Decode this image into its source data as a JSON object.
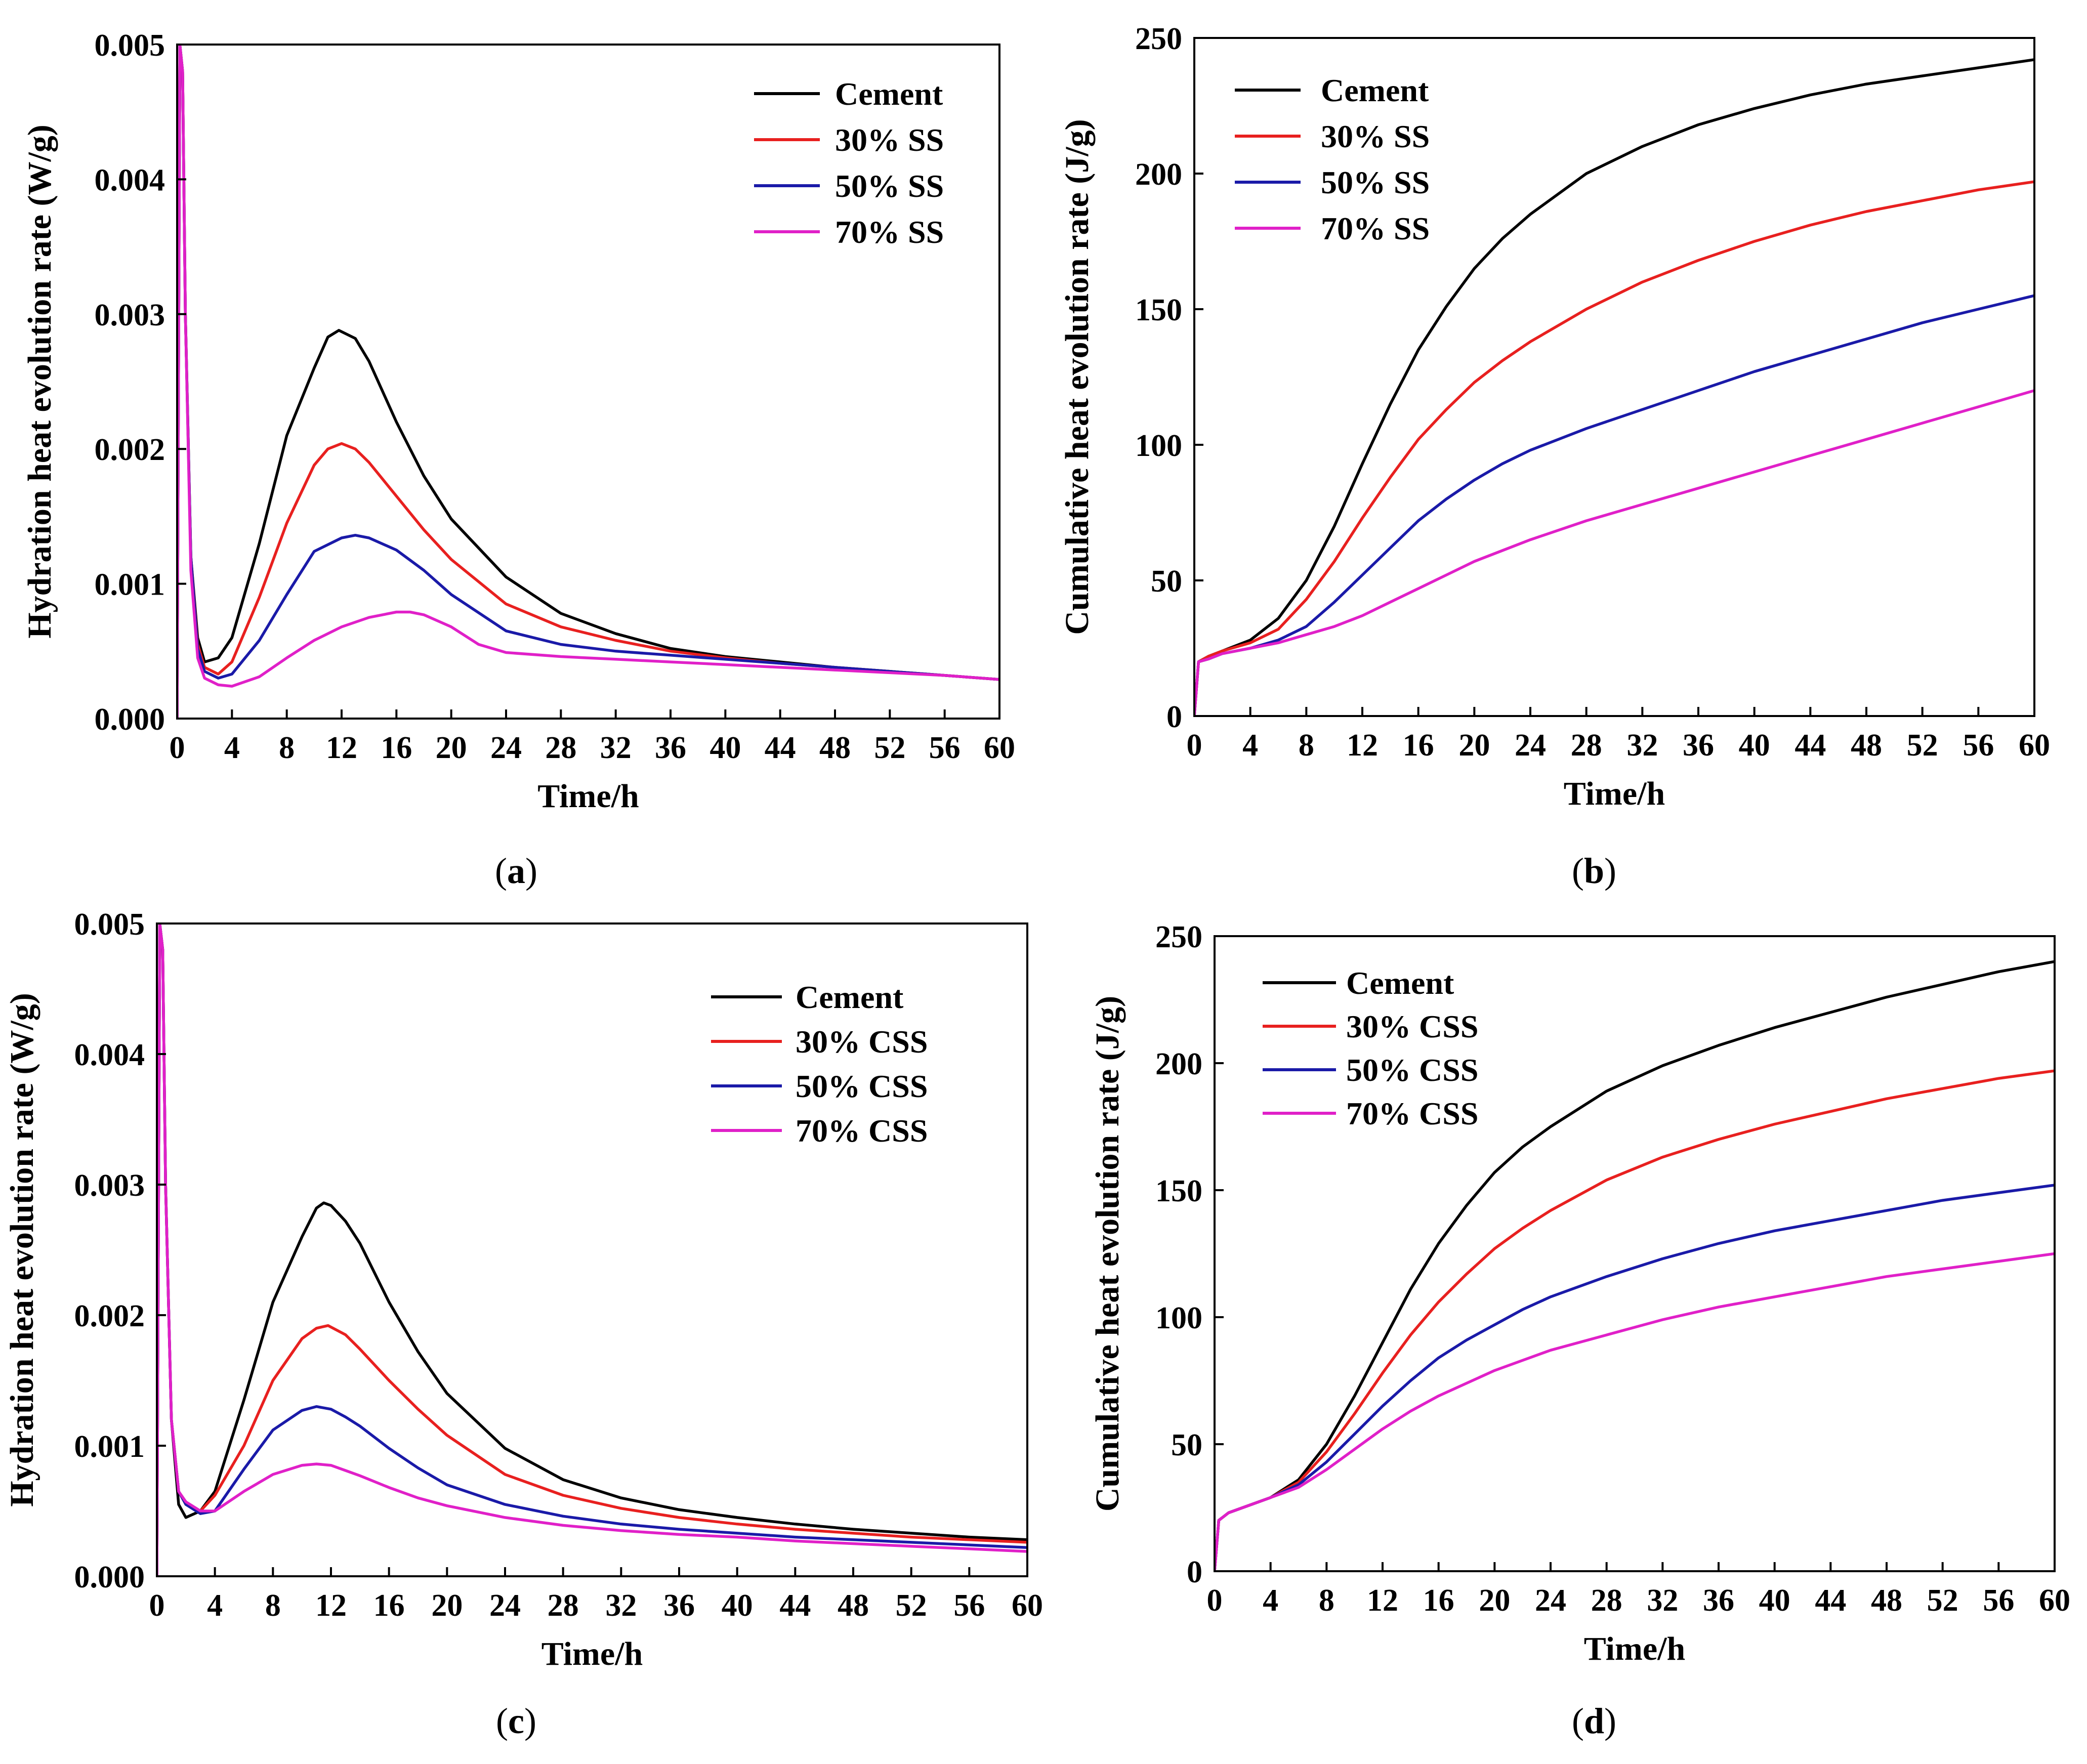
{
  "chart_data": [
    {
      "id": "a",
      "type": "line",
      "caption_letter": "a",
      "xlabel": "Time/h",
      "ylabel": "Hydration heat evolution rate (W/g)",
      "xlim": [
        0,
        60
      ],
      "ylim": [
        0,
        0.005
      ],
      "xticks": [
        "0",
        "4",
        "8",
        "12",
        "16",
        "20",
        "24",
        "28",
        "32",
        "36",
        "40",
        "44",
        "48",
        "52",
        "56",
        "60"
      ],
      "yticks": [
        "0.000",
        "0.001",
        "0.002",
        "0.003",
        "0.004",
        "0.005"
      ],
      "legend": {
        "position": "top-right"
      },
      "series": [
        {
          "name": "Cement",
          "color": "#000000",
          "x": [
            0,
            0.2,
            0.4,
            0.6,
            1,
            1.5,
            2,
            3,
            4,
            6,
            8,
            10,
            11,
            11.8,
            13,
            14,
            16,
            18,
            20,
            24,
            28,
            32,
            36,
            40,
            44,
            48,
            52,
            56,
            60
          ],
          "y": [
            0,
            0.005,
            0.0048,
            0.003,
            0.0012,
            0.0006,
            0.00042,
            0.00045,
            0.0006,
            0.0013,
            0.0021,
            0.0026,
            0.00283,
            0.00288,
            0.00282,
            0.00265,
            0.0022,
            0.0018,
            0.00148,
            0.00105,
            0.00078,
            0.00063,
            0.00052,
            0.00046,
            0.00042,
            0.00038,
            0.00035,
            0.00032,
            0.00029
          ]
        },
        {
          "name": "30% SS",
          "color": "#e8201f",
          "x": [
            0,
            0.2,
            0.4,
            0.6,
            1,
            1.5,
            2,
            3,
            4,
            6,
            8,
            10,
            11,
            12,
            13,
            14,
            16,
            18,
            20,
            24,
            28,
            32,
            36,
            40,
            44,
            48,
            52,
            56,
            60
          ],
          "y": [
            0,
            0.005,
            0.0048,
            0.003,
            0.0012,
            0.00055,
            0.00038,
            0.00033,
            0.00042,
            0.0009,
            0.00145,
            0.00188,
            0.002,
            0.00204,
            0.002,
            0.0019,
            0.00165,
            0.0014,
            0.00118,
            0.00085,
            0.00068,
            0.00058,
            0.0005,
            0.00045,
            0.00041,
            0.00038,
            0.00035,
            0.00032,
            0.00029
          ]
        },
        {
          "name": "50% SS",
          "color": "#1a1aa8",
          "x": [
            0,
            0.2,
            0.4,
            0.6,
            1,
            1.5,
            2,
            3,
            4,
            6,
            8,
            10,
            12,
            13,
            14,
            16,
            18,
            20,
            24,
            28,
            32,
            36,
            40,
            44,
            48,
            52,
            56,
            60
          ],
          "y": [
            0,
            0.005,
            0.0048,
            0.003,
            0.0012,
            0.00052,
            0.00035,
            0.0003,
            0.00033,
            0.00058,
            0.00092,
            0.00124,
            0.00134,
            0.00136,
            0.00134,
            0.00125,
            0.0011,
            0.00092,
            0.00065,
            0.00055,
            0.0005,
            0.00047,
            0.00044,
            0.00041,
            0.00038,
            0.00035,
            0.00032,
            0.00029
          ]
        },
        {
          "name": "70% SS",
          "color": "#e020c8",
          "x": [
            0,
            0.2,
            0.4,
            0.6,
            1,
            1.5,
            2,
            3,
            4,
            6,
            8,
            10,
            12,
            14,
            16,
            17,
            18,
            20,
            22,
            24,
            28,
            32,
            36,
            40,
            44,
            48,
            52,
            56,
            60
          ],
          "y": [
            0,
            0.005,
            0.0048,
            0.003,
            0.0011,
            0.00045,
            0.0003,
            0.00025,
            0.00024,
            0.00031,
            0.00045,
            0.00058,
            0.00068,
            0.00075,
            0.00079,
            0.00079,
            0.00077,
            0.00068,
            0.00055,
            0.00049,
            0.00046,
            0.00044,
            0.00042,
            0.0004,
            0.00038,
            0.00036,
            0.00034,
            0.00032,
            0.00029
          ]
        }
      ]
    },
    {
      "id": "b",
      "type": "line",
      "caption_letter": "b",
      "xlabel": "Time/h",
      "ylabel": "Cumulative heat evolution rate (J/g)",
      "xlim": [
        0,
        60
      ],
      "ylim": [
        0,
        250
      ],
      "xticks": [
        "0",
        "4",
        "8",
        "12",
        "16",
        "20",
        "24",
        "28",
        "32",
        "36",
        "40",
        "44",
        "48",
        "52",
        "56",
        "60"
      ],
      "yticks": [
        "0",
        "50",
        "100",
        "150",
        "200",
        "250"
      ],
      "legend": {
        "position": "top-left"
      },
      "series": [
        {
          "name": "Cement",
          "color": "#000000",
          "x": [
            0,
            0.3,
            1,
            2,
            4,
            6,
            8,
            10,
            12,
            14,
            16,
            18,
            20,
            22,
            24,
            28,
            32,
            36,
            40,
            44,
            48,
            52,
            56,
            60
          ],
          "y": [
            0,
            20,
            22,
            24,
            28,
            36,
            50,
            70,
            93,
            115,
            135,
            151,
            165,
            176,
            185,
            200,
            210,
            218,
            224,
            229,
            233,
            236,
            239,
            242
          ]
        },
        {
          "name": "30% SS",
          "color": "#e8201f",
          "x": [
            0,
            0.3,
            1,
            2,
            4,
            6,
            8,
            10,
            12,
            14,
            16,
            18,
            20,
            22,
            24,
            28,
            32,
            36,
            40,
            44,
            48,
            52,
            56,
            60
          ],
          "y": [
            0,
            20,
            22,
            24,
            27,
            32,
            43,
            57,
            73,
            88,
            102,
            113,
            123,
            131,
            138,
            150,
            160,
            168,
            175,
            181,
            186,
            190,
            194,
            197
          ]
        },
        {
          "name": "50% SS",
          "color": "#1a1aa8",
          "x": [
            0,
            0.3,
            1,
            2,
            4,
            6,
            8,
            10,
            12,
            14,
            16,
            18,
            20,
            22,
            24,
            28,
            32,
            36,
            40,
            44,
            48,
            52,
            56,
            60
          ],
          "y": [
            0,
            20,
            21,
            23,
            25,
            28,
            33,
            42,
            52,
            62,
            72,
            80,
            87,
            93,
            98,
            106,
            113,
            120,
            127,
            133,
            139,
            145,
            150,
            155
          ]
        },
        {
          "name": "70% SS",
          "color": "#e020c8",
          "x": [
            0,
            0.3,
            1,
            2,
            4,
            6,
            8,
            10,
            12,
            14,
            16,
            18,
            20,
            22,
            24,
            28,
            32,
            36,
            40,
            44,
            48,
            52,
            56,
            60
          ],
          "y": [
            0,
            20,
            21,
            23,
            25,
            27,
            30,
            33,
            37,
            42,
            47,
            52,
            57,
            61,
            65,
            72,
            78,
            84,
            90,
            96,
            102,
            108,
            114,
            120
          ]
        }
      ]
    },
    {
      "id": "c",
      "type": "line",
      "caption_letter": "c",
      "xlabel": "Time/h",
      "ylabel": "Hydration heat evolution rate (W/g)",
      "xlim": [
        0,
        60
      ],
      "ylim": [
        0,
        0.005
      ],
      "xticks": [
        "0",
        "4",
        "8",
        "12",
        "16",
        "20",
        "24",
        "28",
        "32",
        "36",
        "40",
        "44",
        "48",
        "52",
        "56",
        "60"
      ],
      "yticks": [
        "0.000",
        "0.001",
        "0.002",
        "0.003",
        "0.004",
        "0.005"
      ],
      "legend": {
        "position": "top-right"
      },
      "series": [
        {
          "name": "Cement",
          "color": "#000000",
          "x": [
            0,
            0.2,
            0.4,
            0.6,
            1,
            1.5,
            2,
            3,
            4,
            6,
            8,
            10,
            11,
            11.5,
            12,
            13,
            14,
            16,
            18,
            20,
            24,
            28,
            32,
            36,
            40,
            44,
            48,
            52,
            56,
            60
          ],
          "y": [
            0,
            0.005,
            0.0048,
            0.003,
            0.0012,
            0.00055,
            0.00045,
            0.0005,
            0.00065,
            0.00135,
            0.0021,
            0.0026,
            0.00282,
            0.00286,
            0.00284,
            0.00272,
            0.00255,
            0.0021,
            0.00172,
            0.0014,
            0.00098,
            0.00074,
            0.0006,
            0.00051,
            0.00045,
            0.0004,
            0.00036,
            0.00033,
            0.0003,
            0.00028
          ]
        },
        {
          "name": "30% CSS",
          "color": "#e8201f",
          "x": [
            0,
            0.2,
            0.4,
            0.6,
            1,
            1.5,
            2,
            3,
            4,
            6,
            8,
            10,
            11,
            11.8,
            13,
            14,
            16,
            18,
            20,
            24,
            28,
            32,
            36,
            40,
            44,
            48,
            52,
            56,
            60
          ],
          "y": [
            0,
            0.005,
            0.0048,
            0.003,
            0.0012,
            0.00065,
            0.00055,
            0.0005,
            0.00062,
            0.001,
            0.0015,
            0.00182,
            0.0019,
            0.00192,
            0.00185,
            0.00174,
            0.0015,
            0.00128,
            0.00108,
            0.00078,
            0.00062,
            0.00052,
            0.00045,
            0.0004,
            0.00036,
            0.00033,
            0.0003,
            0.00028,
            0.00026
          ]
        },
        {
          "name": "50% CSS",
          "color": "#1a1aa8",
          "x": [
            0,
            0.2,
            0.4,
            0.6,
            1,
            1.5,
            2,
            3,
            4,
            6,
            8,
            10,
            11,
            12,
            13,
            14,
            16,
            18,
            20,
            24,
            28,
            32,
            36,
            40,
            44,
            48,
            52,
            56,
            60
          ],
          "y": [
            0,
            0.005,
            0.0048,
            0.003,
            0.0012,
            0.00065,
            0.00055,
            0.00048,
            0.0005,
            0.00082,
            0.00112,
            0.00127,
            0.0013,
            0.00128,
            0.00122,
            0.00115,
            0.00098,
            0.00083,
            0.0007,
            0.00055,
            0.00046,
            0.0004,
            0.00036,
            0.00033,
            0.0003,
            0.00028,
            0.00026,
            0.00024,
            0.00022
          ]
        },
        {
          "name": "70% CSS",
          "color": "#e020c8",
          "x": [
            0,
            0.2,
            0.4,
            0.6,
            1,
            1.5,
            2,
            3,
            4,
            6,
            8,
            10,
            11,
            12,
            13,
            14,
            16,
            18,
            20,
            24,
            28,
            32,
            36,
            40,
            44,
            48,
            52,
            56,
            60
          ],
          "y": [
            0,
            0.005,
            0.0048,
            0.003,
            0.0012,
            0.00065,
            0.00057,
            0.0005,
            0.0005,
            0.00065,
            0.00078,
            0.00085,
            0.00086,
            0.00085,
            0.00081,
            0.00077,
            0.00068,
            0.0006,
            0.00054,
            0.00045,
            0.00039,
            0.00035,
            0.00032,
            0.0003,
            0.00027,
            0.00025,
            0.00023,
            0.00021,
            0.00019
          ]
        }
      ]
    },
    {
      "id": "d",
      "type": "line",
      "caption_letter": "d",
      "xlabel": "Time/h",
      "ylabel": "Cumulative heat evolution rate (J/g)",
      "xlim": [
        0,
        60
      ],
      "ylim": [
        0,
        250
      ],
      "xticks": [
        "0",
        "4",
        "8",
        "12",
        "16",
        "20",
        "24",
        "28",
        "32",
        "36",
        "40",
        "44",
        "48",
        "52",
        "56",
        "60"
      ],
      "yticks": [
        "0",
        "50",
        "100",
        "150",
        "200",
        "250"
      ],
      "legend": {
        "position": "top-left"
      },
      "series": [
        {
          "name": "Cement",
          "color": "#000000",
          "x": [
            0,
            0.3,
            1,
            2,
            4,
            6,
            8,
            10,
            12,
            14,
            16,
            18,
            20,
            22,
            24,
            28,
            32,
            36,
            40,
            44,
            48,
            52,
            56,
            60
          ],
          "y": [
            0,
            20,
            23,
            25,
            29,
            36,
            50,
            69,
            90,
            111,
            129,
            144,
            157,
            167,
            175,
            189,
            199,
            207,
            214,
            220,
            226,
            231,
            236,
            240
          ]
        },
        {
          "name": "30% CSS",
          "color": "#e8201f",
          "x": [
            0,
            0.3,
            1,
            2,
            4,
            6,
            8,
            10,
            12,
            14,
            16,
            18,
            20,
            22,
            24,
            28,
            32,
            36,
            40,
            44,
            48,
            52,
            56,
            60
          ],
          "y": [
            0,
            20,
            23,
            25,
            29,
            35,
            47,
            62,
            78,
            93,
            106,
            117,
            127,
            135,
            142,
            154,
            163,
            170,
            176,
            181,
            186,
            190,
            194,
            197
          ]
        },
        {
          "name": "50% CSS",
          "color": "#1a1aa8",
          "x": [
            0,
            0.3,
            1,
            2,
            4,
            6,
            8,
            10,
            12,
            14,
            16,
            18,
            20,
            22,
            24,
            28,
            32,
            36,
            40,
            44,
            48,
            52,
            56,
            60
          ],
          "y": [
            0,
            20,
            23,
            25,
            29,
            34,
            43,
            54,
            65,
            75,
            84,
            91,
            97,
            103,
            108,
            116,
            123,
            129,
            134,
            138,
            142,
            146,
            149,
            152
          ]
        },
        {
          "name": "70% CSS",
          "color": "#e020c8",
          "x": [
            0,
            0.3,
            1,
            2,
            4,
            6,
            8,
            10,
            12,
            14,
            16,
            18,
            20,
            22,
            24,
            28,
            32,
            36,
            40,
            44,
            48,
            52,
            56,
            60
          ],
          "y": [
            0,
            20,
            23,
            25,
            29,
            33,
            40,
            48,
            56,
            63,
            69,
            74,
            79,
            83,
            87,
            93,
            99,
            104,
            108,
            112,
            116,
            119,
            122,
            125
          ]
        }
      ]
    }
  ]
}
